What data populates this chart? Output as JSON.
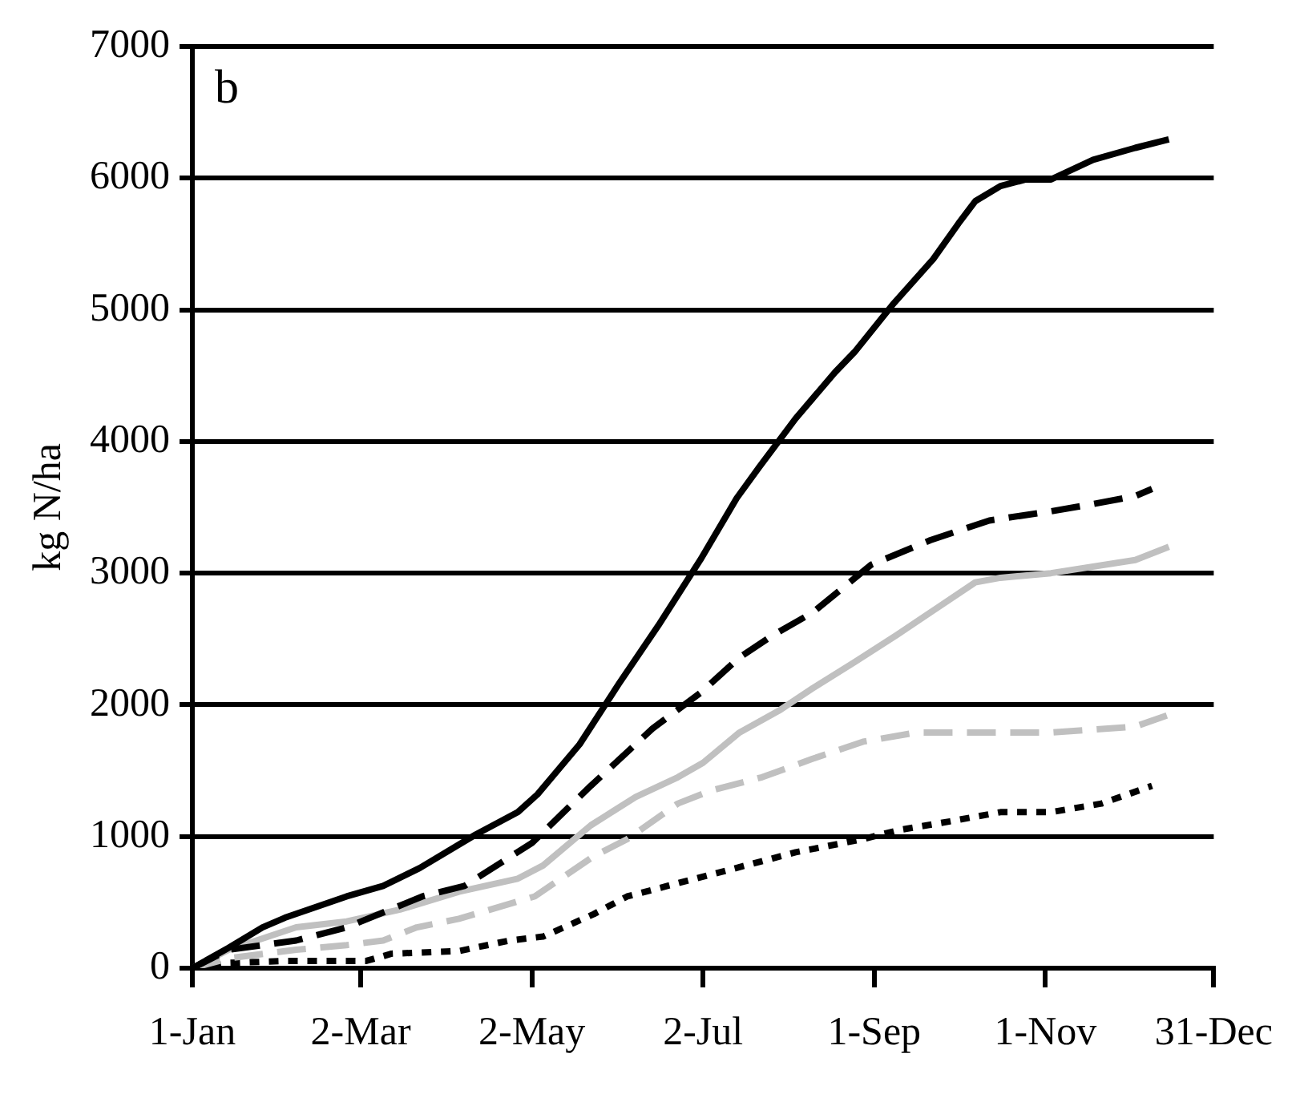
{
  "chart_data": {
    "type": "line",
    "ylabel": "kg N/ha",
    "annotations": [
      "b"
    ],
    "grid": "y",
    "legend": false,
    "marker": "none",
    "xlim": [
      "--01-01",
      "--12-31"
    ],
    "xticks": [
      {
        "value": "--01-01",
        "label": "1-Jan"
      },
      {
        "value": "--03-02",
        "label": "2-Mar"
      },
      {
        "value": "--05-02",
        "label": "2-May"
      },
      {
        "value": "--07-02",
        "label": "2-Jul"
      },
      {
        "value": "--09-01",
        "label": "1-Sep"
      },
      {
        "value": "--11-01",
        "label": "1-Nov"
      },
      {
        "value": "--12-31",
        "label": "31-Dec"
      }
    ],
    "ylim": [
      0,
      7000
    ],
    "yticks": [
      0,
      1000,
      2000,
      3000,
      4000,
      5000,
      6000,
      7000
    ],
    "series": [
      {
        "color": "#000000",
        "line_style": "solid",
        "x": [
          "--01-01",
          "--01-14",
          "--01-26",
          "--02-03",
          "--02-25",
          "--03-10",
          "--03-23",
          "--04-12",
          "--04-27",
          "--05-04",
          "--05-19",
          "--06-02",
          "--06-16",
          "--07-01",
          "--07-14",
          "--07-22",
          "--08-04",
          "--08-18",
          "--08-25",
          "--09-08",
          "--09-22",
          "--10-01",
          "--10-07",
          "--10-16",
          "--10-25",
          "--11-03",
          "--11-18",
          "--12-03",
          "--12-15"
        ],
        "values": [
          0,
          155,
          310,
          383,
          545,
          625,
          760,
          1015,
          1185,
          1320,
          1700,
          2160,
          2600,
          3100,
          3570,
          3805,
          4175,
          4525,
          4680,
          5050,
          5385,
          5655,
          5825,
          5940,
          5990,
          5990,
          6140,
          6230,
          6295
        ]
      },
      {
        "color": "#000000",
        "line_style": "dashed",
        "x": [
          "--01-01",
          "--01-14",
          "--02-07",
          "--02-25",
          "--03-24",
          "--04-08",
          "--05-02",
          "--05-23",
          "--06-14",
          "--07-01",
          "--07-15",
          "--07-27",
          "--08-10",
          "--08-31",
          "--09-21",
          "--10-12",
          "--11-03",
          "--11-18",
          "--12-03",
          "--12-09"
        ],
        "values": [
          0,
          140,
          210,
          310,
          545,
          625,
          950,
          1385,
          1820,
          2090,
          2360,
          2530,
          2700,
          3065,
          3250,
          3400,
          3470,
          3525,
          3585,
          3640
        ]
      },
      {
        "color": "#c0c0c0",
        "line_style": "solid",
        "x": [
          "--01-01",
          "--01-14",
          "--02-07",
          "--02-25",
          "--03-16",
          "--04-06",
          "--04-27",
          "--05-06",
          "--05-23",
          "--06-08",
          "--06-23",
          "--07-02",
          "--07-15",
          "--07-29",
          "--08-10",
          "--08-25",
          "--09-09",
          "--09-23",
          "--10-07",
          "--10-16",
          "--11-03",
          "--12-03",
          "--12-15"
        ],
        "values": [
          0,
          140,
          310,
          355,
          445,
          580,
          680,
          780,
          1085,
          1300,
          1450,
          1560,
          1790,
          1955,
          2125,
          2325,
          2530,
          2730,
          2930,
          2965,
          3000,
          3100,
          3200
        ]
      },
      {
        "color": "#c0c0c0",
        "line_style": "dashed",
        "x": [
          "--01-01",
          "--01-14",
          "--02-07",
          "--02-25",
          "--03-10",
          "--03-22",
          "--04-06",
          "--05-03",
          "--05-24",
          "--06-05",
          "--06-23",
          "--07-05",
          "--07-23",
          "--08-10",
          "--08-28",
          "--09-16",
          "--11-03",
          "--12-03",
          "--12-15"
        ],
        "values": [
          0,
          75,
          140,
          175,
          210,
          310,
          375,
          545,
          850,
          980,
          1250,
          1350,
          1450,
          1590,
          1720,
          1790,
          1790,
          1835,
          1925
        ]
      },
      {
        "color": "#000000",
        "line_style": "dotted",
        "x": [
          "--01-01",
          "--01-14",
          "--02-04",
          "--03-04",
          "--03-13",
          "--04-06",
          "--04-24",
          "--05-06",
          "--05-24",
          "--06-05",
          "--06-23",
          "--07-11",
          "--08-04",
          "--08-28",
          "--09-10",
          "--09-28",
          "--10-16",
          "--11-03",
          "--11-21",
          "--12-09"
        ],
        "values": [
          0,
          40,
          55,
          55,
          110,
          130,
          210,
          240,
          410,
          545,
          645,
          745,
          880,
          980,
          1050,
          1115,
          1185,
          1185,
          1250,
          1385
        ]
      }
    ]
  }
}
